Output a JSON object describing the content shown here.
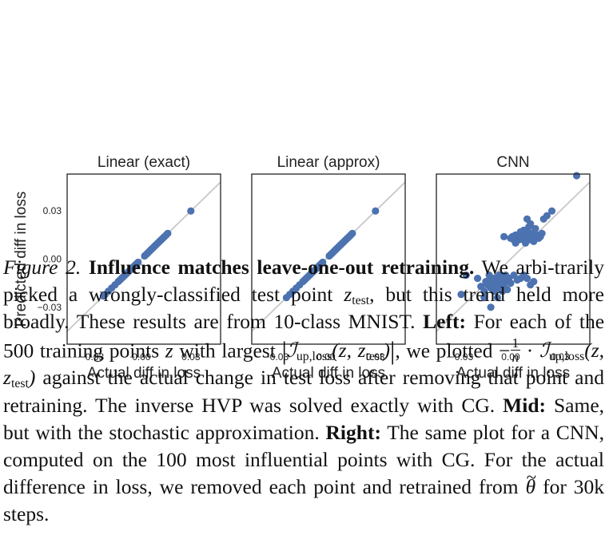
{
  "figure_label": "Figure 2.",
  "figure_title": "Influence matches leave-one-out retraining.",
  "chart_data": [
    {
      "type": "scatter",
      "title": "Linear (exact)",
      "xlabel": "Actual diff in loss",
      "ylabel": "Predicted diff in loss",
      "xlim": [
        -0.045,
        0.048
      ],
      "ylim": [
        -0.053,
        0.053
      ],
      "xticks": [
        -0.03,
        0.0,
        0.03
      ],
      "xtick_labels": [
        "−0.03",
        "0.00",
        "0.03"
      ],
      "yticks": [
        -0.03,
        0.0,
        0.03
      ],
      "ytick_labels": [
        "−0.03",
        "0.00",
        "0.03"
      ],
      "diagonal": true,
      "points": [
        [
          -0.023,
          -0.023
        ],
        [
          -0.022,
          -0.022
        ],
        [
          -0.02,
          -0.02
        ],
        [
          -0.018,
          -0.018
        ],
        [
          -0.016,
          -0.016
        ],
        [
          -0.014,
          -0.014
        ],
        [
          -0.013,
          -0.013
        ],
        [
          -0.012,
          -0.012
        ],
        [
          -0.011,
          -0.011
        ],
        [
          -0.01,
          -0.01
        ],
        [
          -0.009,
          -0.009
        ],
        [
          -0.008,
          -0.008
        ],
        [
          -0.007,
          -0.007
        ],
        [
          -0.006,
          -0.006
        ],
        [
          -0.005,
          -0.005
        ],
        [
          -0.004,
          -0.004
        ],
        [
          -0.003,
          -0.003
        ],
        [
          -0.002,
          -0.002
        ],
        [
          0.002,
          0.002
        ],
        [
          0.003,
          0.003
        ],
        [
          0.004,
          0.004
        ],
        [
          0.005,
          0.005
        ],
        [
          0.006,
          0.006
        ],
        [
          0.007,
          0.007
        ],
        [
          0.008,
          0.008
        ],
        [
          0.009,
          0.009
        ],
        [
          0.01,
          0.01
        ],
        [
          0.011,
          0.011
        ],
        [
          0.012,
          0.012
        ],
        [
          0.013,
          0.013
        ],
        [
          0.014,
          0.014
        ],
        [
          0.015,
          0.015
        ],
        [
          0.016,
          0.016
        ],
        [
          0.03,
          0.03
        ]
      ]
    },
    {
      "type": "scatter",
      "title": "Linear (approx)",
      "xlabel": "Actual diff in loss",
      "ylabel": "",
      "xlim": [
        -0.045,
        0.048
      ],
      "ylim": [
        -0.053,
        0.053
      ],
      "xticks": [
        -0.03,
        0.0,
        0.03
      ],
      "xtick_labels": [
        "−0.03",
        "0.00",
        "0.03"
      ],
      "yticks": [
        -0.03,
        0.0,
        0.03
      ],
      "ytick_labels": [],
      "diagonal": true,
      "points": [
        [
          -0.024,
          -0.024
        ],
        [
          -0.022,
          -0.022
        ],
        [
          -0.02,
          -0.02
        ],
        [
          -0.018,
          -0.018
        ],
        [
          -0.016,
          -0.016
        ],
        [
          -0.014,
          -0.014
        ],
        [
          -0.013,
          -0.013
        ],
        [
          -0.012,
          -0.012
        ],
        [
          -0.011,
          -0.011
        ],
        [
          -0.01,
          -0.01
        ],
        [
          -0.009,
          -0.009
        ],
        [
          -0.008,
          -0.008
        ],
        [
          -0.007,
          -0.007
        ],
        [
          -0.006,
          -0.006
        ],
        [
          -0.005,
          -0.005
        ],
        [
          -0.004,
          -0.004
        ],
        [
          -0.003,
          -0.003
        ],
        [
          -0.002,
          -0.002
        ],
        [
          0.002,
          0.002
        ],
        [
          0.003,
          0.003
        ],
        [
          0.004,
          0.004
        ],
        [
          0.005,
          0.005
        ],
        [
          0.006,
          0.006
        ],
        [
          0.007,
          0.007
        ],
        [
          0.008,
          0.008
        ],
        [
          0.009,
          0.009
        ],
        [
          0.01,
          0.01
        ],
        [
          0.011,
          0.011
        ],
        [
          0.012,
          0.012
        ],
        [
          0.013,
          0.013
        ],
        [
          0.014,
          0.014
        ],
        [
          0.015,
          0.015
        ],
        [
          0.016,
          0.016
        ],
        [
          0.03,
          0.03
        ]
      ]
    },
    {
      "type": "scatter",
      "title": "CNN",
      "xlabel": "Actual diff in loss",
      "ylabel": "",
      "xlim": [
        -0.045,
        0.048
      ],
      "ylim": [
        -0.053,
        0.053
      ],
      "xticks": [
        -0.03,
        0.0,
        0.03
      ],
      "xtick_labels": [
        "−0.03",
        "0.00",
        "0.03"
      ],
      "yticks": [
        -0.03,
        0.0,
        0.03
      ],
      "ytick_labels": [],
      "diagonal": true,
      "points": [
        [
          -0.03,
          -0.022
        ],
        [
          -0.027,
          -0.01
        ],
        [
          -0.02,
          -0.012
        ],
        [
          -0.018,
          -0.017
        ],
        [
          -0.016,
          -0.02
        ],
        [
          -0.015,
          -0.014
        ],
        [
          -0.014,
          -0.016
        ],
        [
          -0.013,
          -0.013
        ],
        [
          -0.012,
          -0.018
        ],
        [
          -0.011,
          -0.015
        ],
        [
          -0.01,
          -0.012
        ],
        [
          -0.01,
          -0.02
        ],
        [
          -0.009,
          -0.016
        ],
        [
          -0.008,
          -0.013
        ],
        [
          -0.008,
          -0.024
        ],
        [
          -0.007,
          -0.018
        ],
        [
          -0.006,
          -0.015
        ],
        [
          -0.005,
          -0.011
        ],
        [
          -0.005,
          -0.02
        ],
        [
          -0.004,
          -0.017
        ],
        [
          -0.003,
          -0.014
        ],
        [
          -0.002,
          -0.019
        ],
        [
          -0.001,
          -0.012
        ],
        [
          0.0,
          -0.015
        ],
        [
          0.002,
          -0.01
        ],
        [
          0.004,
          -0.013
        ],
        [
          0.006,
          -0.012
        ],
        [
          0.008,
          -0.01
        ],
        [
          0.01,
          -0.012
        ],
        [
          0.012,
          -0.016
        ],
        [
          0.014,
          -0.014
        ],
        [
          -0.013,
          -0.01
        ],
        [
          -0.007,
          -0.01
        ],
        [
          -0.003,
          -0.01
        ],
        [
          -0.012,
          -0.03
        ],
        [
          -0.016,
          -0.024
        ],
        [
          0.0,
          0.013
        ],
        [
          0.001,
          0.014
        ],
        [
          0.002,
          0.012
        ],
        [
          0.003,
          0.015
        ],
        [
          0.004,
          0.013
        ],
        [
          0.005,
          0.012
        ],
        [
          0.006,
          0.014
        ],
        [
          0.007,
          0.013
        ],
        [
          0.008,
          0.012
        ],
        [
          0.009,
          0.015
        ],
        [
          0.01,
          0.013
        ],
        [
          0.011,
          0.012
        ],
        [
          0.012,
          0.014
        ],
        [
          0.013,
          0.016
        ],
        [
          0.014,
          0.013
        ],
        [
          0.015,
          0.014
        ],
        [
          0.016,
          0.015
        ],
        [
          0.017,
          0.013
        ],
        [
          0.018,
          0.014
        ],
        [
          0.019,
          0.016
        ],
        [
          0.006,
          0.017
        ],
        [
          0.008,
          0.018
        ],
        [
          0.01,
          0.017
        ],
        [
          0.011,
          0.02
        ],
        [
          0.012,
          0.022
        ],
        [
          0.01,
          0.025
        ],
        [
          0.015,
          0.019
        ],
        [
          0.02,
          0.025
        ],
        [
          0.022,
          0.027
        ],
        [
          0.025,
          0.03
        ],
        [
          0.009,
          0.01
        ],
        [
          0.014,
          0.011
        ],
        [
          0.003,
          0.01
        ],
        [
          -0.004,
          0.014
        ],
        [
          0.04,
          0.052
        ]
      ]
    }
  ],
  "caption": {
    "p1": "We arbi-trarily picked a wrongly-classified test point",
    "z_test": "z",
    "sub_test": "test",
    "p2": ", but this trend held more broadly. These results are from 10-class MNIST.",
    "left_label": "Left:",
    "p3": "For each of the 500 training points",
    "z": "z",
    "p4": "with largest",
    "bar": "|",
    "cal_i": "ℐ",
    "sub_uploss": "up,loss",
    "args": "(z, z",
    "close_paren": ")",
    "comma": ",",
    "p5": "we plotted −",
    "frac_num": "1",
    "frac_den": "n",
    "dot": "·",
    "p6": "against the actual change in test loss after removing that point and retraining. The inverse HVP was solved exactly with CG.",
    "mid_label": "Mid:",
    "p7": "Same, but with the stochastic approximation.",
    "right_label": "Right:",
    "p8": "The same plot for a CNN, computed on the 100 most influential points with CG. For the actual difference in loss, we removed each point and retrained from",
    "theta": "θ",
    "p9": "for 30k steps."
  },
  "colors": {
    "point": "#4c72b0",
    "diagonal": "#c8c8c8",
    "frame": "#222222"
  }
}
